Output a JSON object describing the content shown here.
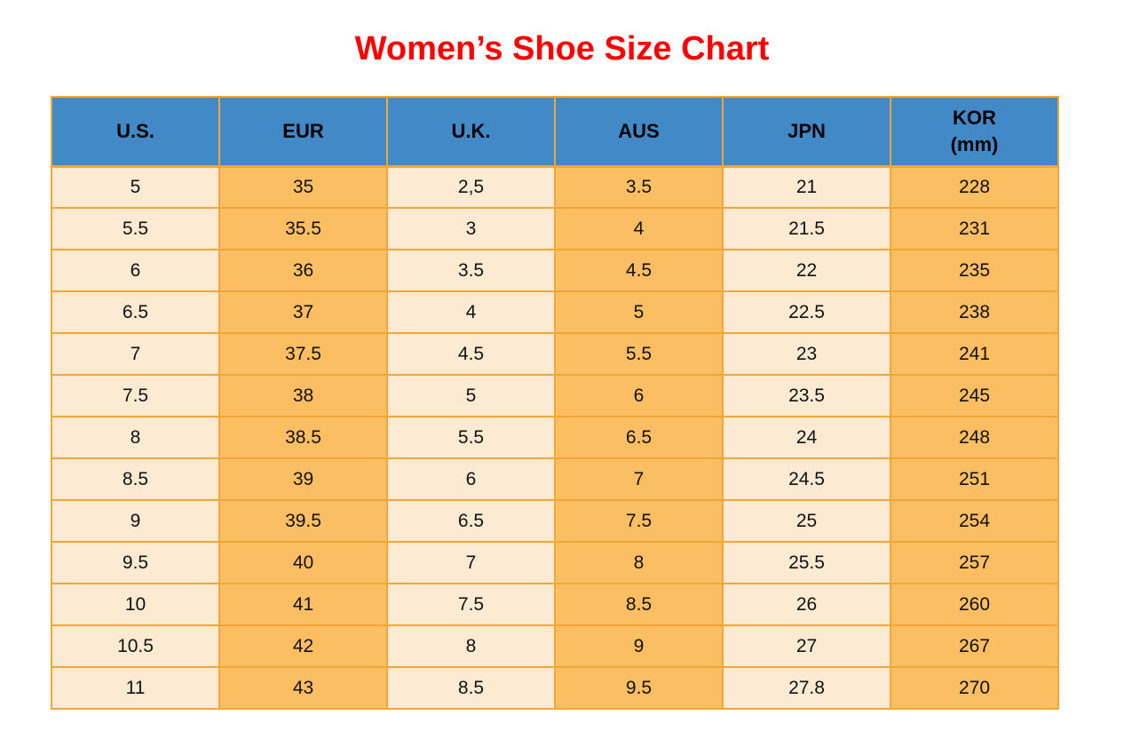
{
  "title": {
    "text": "Women’s Shoe Size Chart",
    "color": "#ff0000"
  },
  "table": {
    "header_display": [
      "U.S.",
      "EUR",
      "U.K.",
      "AUS",
      "JPN",
      "KOR\n(mm)"
    ],
    "colors": {
      "header_bg": "#4289c7",
      "column_light": "#fcebd2",
      "column_orange": "#fcbe63",
      "border": "#f2a635",
      "text": "#111111"
    }
  },
  "chart_data": {
    "type": "table",
    "title": "Women’s Shoe Size Chart",
    "columns": [
      "U.S.",
      "EUR",
      "U.K.",
      "AUS",
      "JPN",
      "KOR (mm)"
    ],
    "rows": [
      [
        "5",
        "35",
        "2,5",
        "3.5",
        "21",
        "228"
      ],
      [
        "5.5",
        "35.5",
        "3",
        "4",
        "21.5",
        "231"
      ],
      [
        "6",
        "36",
        "3.5",
        "4.5",
        "22",
        "235"
      ],
      [
        "6.5",
        "37",
        "4",
        "5",
        "22.5",
        "238"
      ],
      [
        "7",
        "37.5",
        "4.5",
        "5.5",
        "23",
        "241"
      ],
      [
        "7.5",
        "38",
        "5",
        "6",
        "23.5",
        "245"
      ],
      [
        "8",
        "38.5",
        "5.5",
        "6.5",
        "24",
        "248"
      ],
      [
        "8.5",
        "39",
        "6",
        "7",
        "24.5",
        "251"
      ],
      [
        "9",
        "39.5",
        "6.5",
        "7.5",
        "25",
        "254"
      ],
      [
        "9.5",
        "40",
        "7",
        "8",
        "25.5",
        "257"
      ],
      [
        "10",
        "41",
        "7.5",
        "8.5",
        "26",
        "260"
      ],
      [
        "10.5",
        "42",
        "8",
        "9",
        "27",
        "267"
      ],
      [
        "11",
        "43",
        "8.5",
        "9.5",
        "27.8",
        "270"
      ]
    ]
  }
}
